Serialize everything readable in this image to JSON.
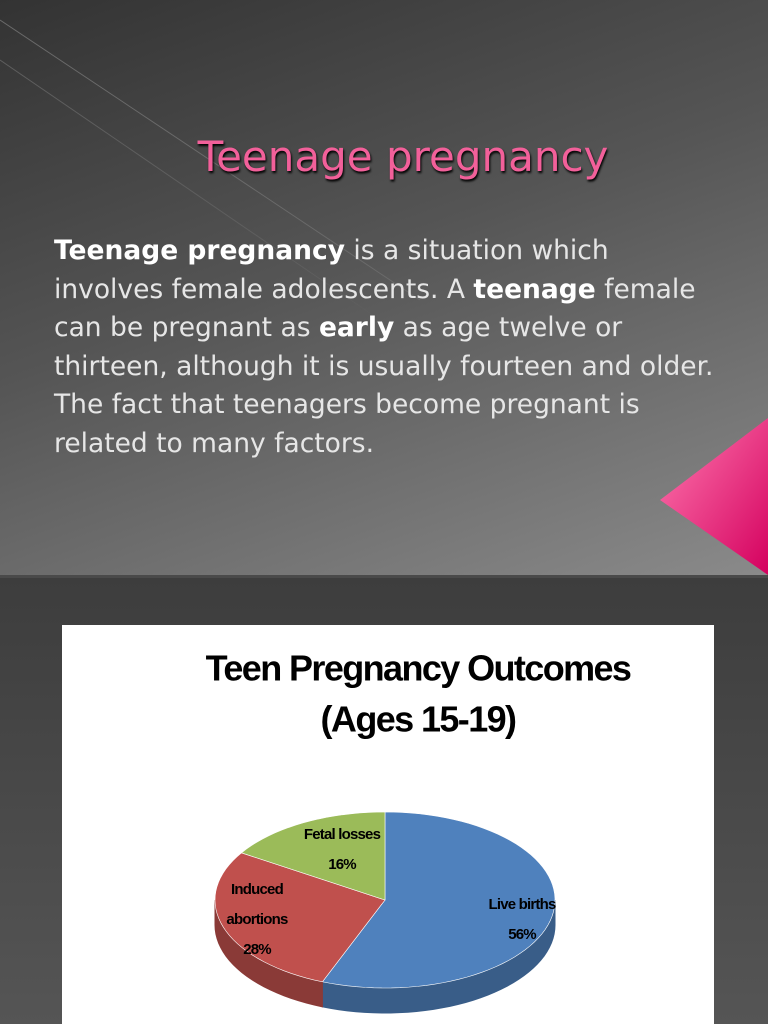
{
  "slide": {
    "title": "Teenage pregnancy",
    "body": [
      {
        "text": "Teenage pregnancy",
        "bold": true
      },
      {
        "text": " is a situation which involves female adolescents. A ",
        "bold": false
      },
      {
        "text": "teenage",
        "bold": true
      },
      {
        "text": " female can be pregnant as ",
        "bold": false
      },
      {
        "text": "early",
        "bold": true
      },
      {
        "text": " as age twelve or thirteen, although it is usually fourteen and older. The fact that teenagers become pregnant is related to many factors.",
        "bold": false
      }
    ]
  },
  "chart_data": {
    "type": "pie",
    "title": "Teen Pregnancy Outcomes",
    "subtitle": "(Ages 15-19)",
    "categories": [
      "Live births",
      "Induced abortions",
      "Fetal losses"
    ],
    "values": [
      56,
      28,
      16
    ],
    "value_labels": [
      "56%",
      "28%",
      "16%"
    ],
    "colors": [
      "#4f81bd",
      "#c0504d",
      "#9bbb59"
    ]
  }
}
